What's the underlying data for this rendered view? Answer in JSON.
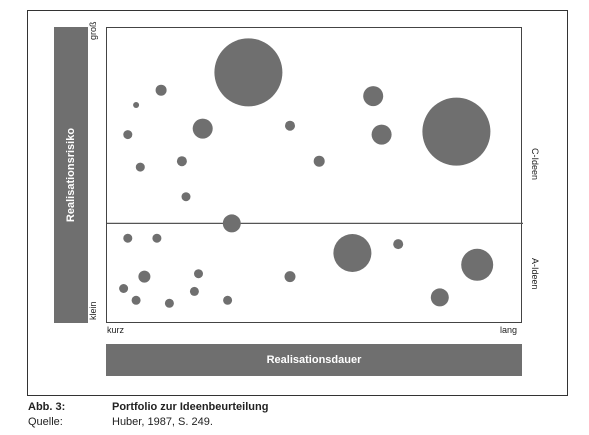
{
  "chart_data": {
    "type": "scatter",
    "title": "Portfolio zur Ideenbeurteilung",
    "xlabel": "Realisationsdauer",
    "ylabel": "Realisationsrisiko",
    "x_ticks": [
      "kurz",
      "lang"
    ],
    "y_ticks": [
      "klein",
      "groß"
    ],
    "xlim": [
      0,
      100
    ],
    "ylim": [
      0,
      100
    ],
    "divider_y": 34,
    "region_labels": [
      "C-Ideen",
      "A-Ideen"
    ],
    "bubble_color": "#6f6f6f",
    "points": [
      {
        "x": 34,
        "y": 85,
        "size": 34
      },
      {
        "x": 84,
        "y": 65,
        "size": 34
      },
      {
        "x": 59,
        "y": 24,
        "size": 19
      },
      {
        "x": 89,
        "y": 20,
        "size": 16
      },
      {
        "x": 64,
        "y": 77,
        "size": 10
      },
      {
        "x": 66,
        "y": 64,
        "size": 10
      },
      {
        "x": 23,
        "y": 66,
        "size": 10
      },
      {
        "x": 80,
        "y": 9,
        "size": 9
      },
      {
        "x": 30,
        "y": 34,
        "size": 9
      },
      {
        "x": 13,
        "y": 79,
        "size": 5.5
      },
      {
        "x": 9,
        "y": 16,
        "size": 6
      },
      {
        "x": 44,
        "y": 16,
        "size": 5.5
      },
      {
        "x": 51,
        "y": 55,
        "size": 5.5
      },
      {
        "x": 44,
        "y": 67,
        "size": 5
      },
      {
        "x": 70,
        "y": 27,
        "size": 5
      },
      {
        "x": 18,
        "y": 55,
        "size": 5
      },
      {
        "x": 5,
        "y": 64,
        "size": 4.5
      },
      {
        "x": 8,
        "y": 53,
        "size": 4.5
      },
      {
        "x": 19,
        "y": 43,
        "size": 4.5
      },
      {
        "x": 22,
        "y": 17,
        "size": 4.5
      },
      {
        "x": 5,
        "y": 29,
        "size": 4.5
      },
      {
        "x": 12,
        "y": 29,
        "size": 4.5
      },
      {
        "x": 4,
        "y": 12,
        "size": 4.5
      },
      {
        "x": 7,
        "y": 8,
        "size": 4.5
      },
      {
        "x": 15,
        "y": 7,
        "size": 4.5
      },
      {
        "x": 21,
        "y": 11,
        "size": 4.5
      },
      {
        "x": 29,
        "y": 8,
        "size": 4.5
      },
      {
        "x": 7,
        "y": 74,
        "size": 3
      }
    ]
  },
  "caption": {
    "abb_label": "Abb. 3:",
    "abb_text": "Portfolio zur Ideenbeurteilung",
    "quelle_label": "Quelle:",
    "quelle_text": "Huber, 1987, S. 249."
  }
}
